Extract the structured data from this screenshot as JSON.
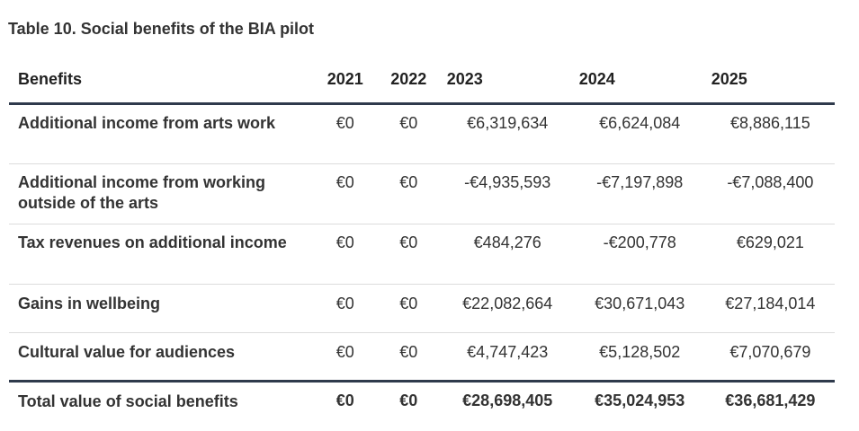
{
  "title": "Table 10. Social benefits of the BIA pilot",
  "headers": [
    "Benefits",
    "2021",
    "2022",
    "2023",
    "2024",
    "2025"
  ],
  "rows": [
    {
      "label": "Additional income from arts work",
      "values": [
        "€0",
        "€0",
        "€6,319,634",
        "€6,624,084",
        "€8,886,115"
      ]
    },
    {
      "label": "Additional income from working outside of the arts",
      "values": [
        "€0",
        "€0",
        "-€4,935,593",
        "-€7,197,898",
        "-€7,088,400"
      ]
    },
    {
      "label": "Tax revenues on additional income",
      "values": [
        "€0",
        "€0",
        "€484,276",
        "-€200,778",
        "€629,021"
      ]
    },
    {
      "label": "Gains in wellbeing",
      "values": [
        "€0",
        "€0",
        "€22,082,664",
        "€30,671,043",
        "€27,184,014"
      ]
    },
    {
      "label": "Cultural value for audiences",
      "values": [
        "€0",
        "€0",
        "€4,747,423",
        "€5,128,502",
        "€7,070,679"
      ]
    }
  ],
  "total": {
    "label": "Total value of social benefits",
    "values": [
      "€0",
      "€0",
      "€28,698,405",
      "€35,024,953",
      "€36,681,429"
    ]
  }
}
